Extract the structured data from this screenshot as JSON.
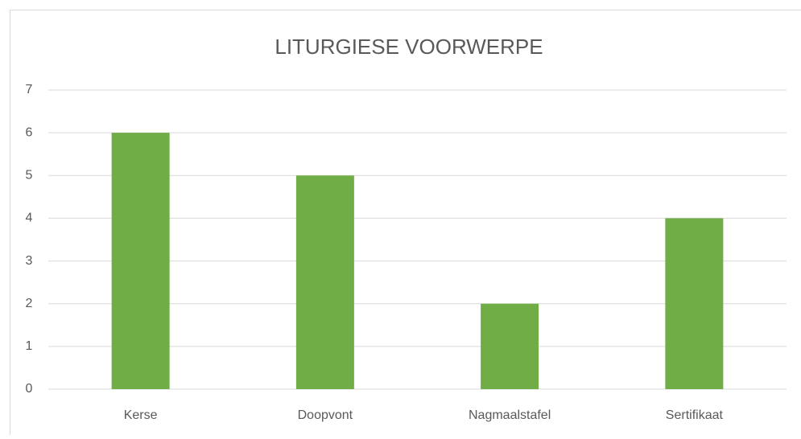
{
  "chart_data": {
    "type": "bar",
    "title": "LITURGIESE VOORWERPE",
    "categories": [
      "Kerse",
      "Doopvont",
      "Nagmaalstafel",
      "Sertifikaat"
    ],
    "values": [
      6,
      5,
      2,
      4
    ],
    "color": "#70ad47",
    "ylim": [
      0,
      7
    ],
    "yticks": [
      0,
      1,
      2,
      3,
      4,
      5,
      6,
      7
    ],
    "grid": true
  }
}
